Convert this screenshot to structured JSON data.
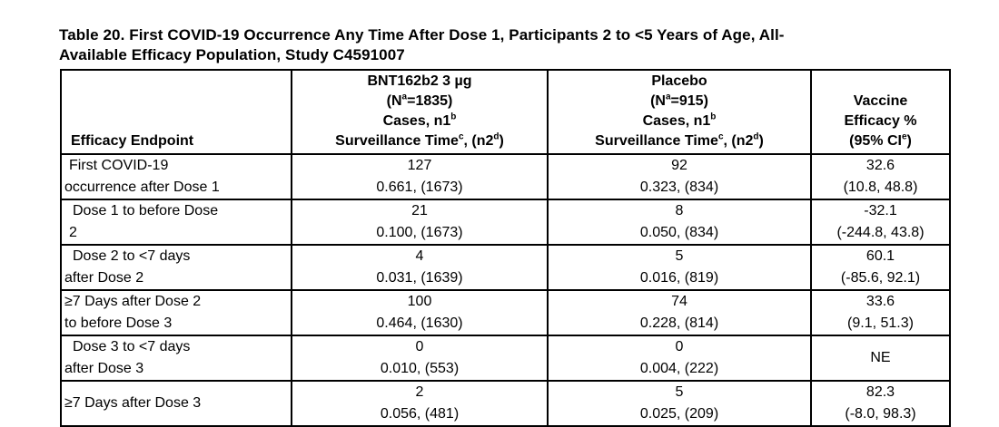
{
  "title": {
    "lines": [
      "Table 20. First COVID-19 Occurrence Any Time After Dose 1, Participants 2 to <5 Years of Age, All-",
      "Available Efficacy Population, Study C4591007"
    ]
  },
  "table": {
    "header": {
      "endpoint": "Efficacy Endpoint",
      "bnt_lines": [
        [
          {
            "t": "BNT162b2 3 µg"
          }
        ],
        [
          {
            "t": "(N"
          },
          {
            "t": "a",
            "sup": true
          },
          {
            "t": "=1835)"
          }
        ],
        [
          {
            "t": "Cases, n1"
          },
          {
            "t": "b",
            "sup": true
          }
        ],
        [
          {
            "t": "Surveillance Time"
          },
          {
            "t": "c",
            "sup": true
          },
          {
            "t": ", (n2"
          },
          {
            "t": "d",
            "sup": true
          },
          {
            "t": ")"
          }
        ]
      ],
      "placebo_lines": [
        [
          {
            "t": "Placebo"
          }
        ],
        [
          {
            "t": "(N"
          },
          {
            "t": "a",
            "sup": true
          },
          {
            "t": "=915)"
          }
        ],
        [
          {
            "t": "Cases, n1"
          },
          {
            "t": "b",
            "sup": true
          }
        ],
        [
          {
            "t": "Surveillance Time"
          },
          {
            "t": "c",
            "sup": true
          },
          {
            "t": ", (n2"
          },
          {
            "t": "d",
            "sup": true
          },
          {
            "t": ")"
          }
        ]
      ],
      "ve_lines": [
        [
          {
            "t": "Vaccine"
          }
        ],
        [
          {
            "t": "Efficacy %"
          }
        ],
        [
          {
            "t": "(95% CI"
          },
          {
            "t": "e",
            "sup": true
          },
          {
            "t": ")"
          }
        ]
      ]
    },
    "rows": [
      {
        "endpoint_lines": [
          {
            "t": "First COVID-19",
            "ind": 1
          },
          {
            "t": "occurrence after Dose 1"
          }
        ],
        "bnt_lines": [
          "127",
          "0.661, (1673)"
        ],
        "placebo_lines": [
          "92",
          "0.323, (834)"
        ],
        "ve_lines": [
          "32.6",
          "(10.8, 48.8)"
        ]
      },
      {
        "endpoint_lines": [
          {
            "t": "Dose 1 to before Dose",
            "ind": 2
          },
          {
            "t": "2",
            "ind": 1
          }
        ],
        "bnt_lines": [
          "21",
          "0.100, (1673)"
        ],
        "placebo_lines": [
          "8",
          "0.050, (834)"
        ],
        "ve_lines": [
          "-32.1",
          "(-244.8, 43.8)"
        ]
      },
      {
        "endpoint_lines": [
          {
            "t": "Dose 2 to <7 days",
            "ind": 2
          },
          {
            "t": "after Dose 2"
          }
        ],
        "bnt_lines": [
          "4",
          "0.031, (1639)"
        ],
        "placebo_lines": [
          "5",
          "0.016, (819)"
        ],
        "ve_lines": [
          "60.1",
          "(-85.6, 92.1)"
        ]
      },
      {
        "endpoint_lines": [
          {
            "t": "≥7 Days after Dose 2"
          },
          {
            "t": "to before Dose 3"
          }
        ],
        "bnt_lines": [
          "100",
          "0.464, (1630)"
        ],
        "placebo_lines": [
          "74",
          "0.228, (814)"
        ],
        "ve_lines": [
          "33.6",
          "(9.1, 51.3)"
        ]
      },
      {
        "endpoint_lines": [
          {
            "t": "Dose 3 to <7 days",
            "ind": 2
          },
          {
            "t": "after Dose 3"
          }
        ],
        "bnt_lines": [
          "0",
          "0.010, (553)"
        ],
        "placebo_lines": [
          "0",
          "0.004, (222)"
        ],
        "ve_lines": [
          "NE"
        ]
      },
      {
        "endpoint_lines": [
          {
            "t": "≥7 Days after Dose 3"
          }
        ],
        "bnt_lines": [
          "2",
          "0.056, (481)"
        ],
        "placebo_lines": [
          "5",
          "0.025, (209)"
        ],
        "ve_lines": [
          "82.3",
          "(-8.0, 98.3)"
        ]
      }
    ]
  },
  "colors": {
    "text": "#000000",
    "border": "#000000",
    "background": "#ffffff"
  }
}
